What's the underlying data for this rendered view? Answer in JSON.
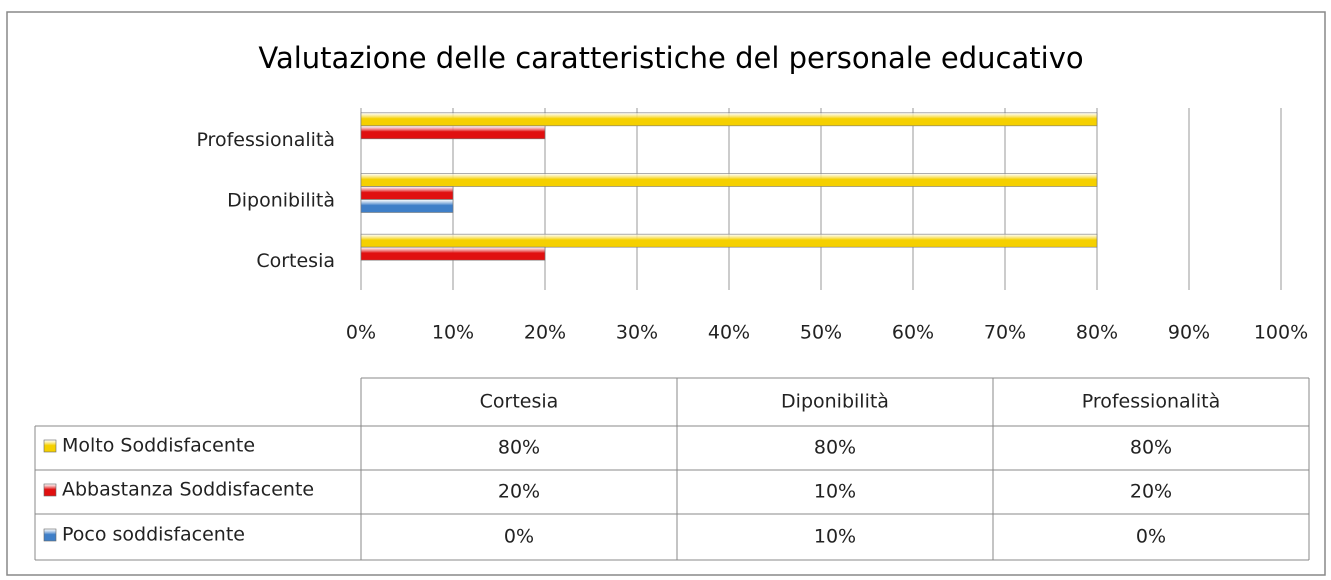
{
  "chart_data": {
    "type": "bar",
    "orientation": "horizontal",
    "title": "Valutazione delle caratteristiche del personale educativo",
    "categories": [
      "Cortesia",
      "Diponibilità",
      "Professionalità"
    ],
    "series": [
      {
        "name": "Molto Soddisfacente",
        "color": "#f5d000",
        "values": [
          80,
          80,
          80
        ],
        "value_labels": [
          "80%",
          "80%",
          "80%"
        ]
      },
      {
        "name": "Abbastanza Soddisfacente",
        "color": "#e01010",
        "values": [
          20,
          10,
          20
        ],
        "value_labels": [
          "20%",
          "10%",
          "20%"
        ]
      },
      {
        "name": "Poco soddisfacente",
        "color": "#3f7fc8",
        "values": [
          0,
          10,
          0
        ],
        "value_labels": [
          "0%",
          "10%",
          "0%"
        ]
      }
    ],
    "xlim": [
      0,
      100
    ],
    "xticks": [
      {
        "value": 0,
        "label": "0%"
      },
      {
        "value": 10,
        "label": "10%"
      },
      {
        "value": 20,
        "label": "20%"
      },
      {
        "value": 30,
        "label": "30%"
      },
      {
        "value": 40,
        "label": "40%"
      },
      {
        "value": 50,
        "label": "50%"
      },
      {
        "value": 60,
        "label": "60%"
      },
      {
        "value": 70,
        "label": "70%"
      },
      {
        "value": 80,
        "label": "80%"
      },
      {
        "value": 90,
        "label": "90%"
      },
      {
        "value": 100,
        "label": "100%"
      }
    ],
    "grid": true,
    "data_table": true
  }
}
